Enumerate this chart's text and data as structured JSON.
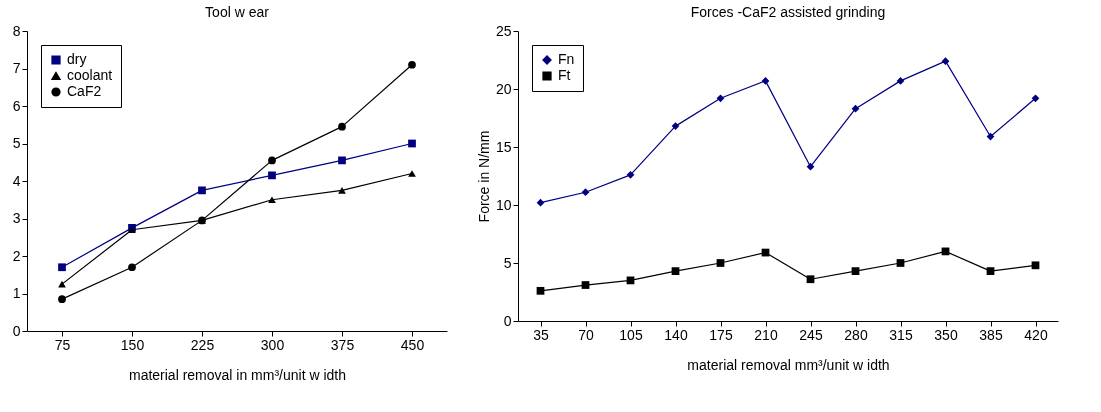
{
  "chart_data": [
    {
      "type": "line",
      "title": "Tool w ear",
      "xlabel": "material removal in mm³/unit w idth",
      "categories": [
        "75",
        "150",
        "225",
        "300",
        "375",
        "450"
      ],
      "ylim": [
        0,
        8
      ],
      "yticks": [
        0,
        1,
        2,
        3,
        4,
        5,
        6,
        7,
        8
      ],
      "grid": false,
      "legend": "top left",
      "series": [
        {
          "name": "dry",
          "color": "#000080",
          "marker": "square",
          "values": [
            1.7,
            2.75,
            3.75,
            4.15,
            4.55,
            5.0
          ]
        },
        {
          "name": "coolant",
          "color": "#000000",
          "marker": "triangle",
          "values": [
            1.25,
            2.7,
            2.95,
            3.5,
            3.75,
            4.2
          ]
        },
        {
          "name": "CaF2",
          "color": "#000000",
          "marker": "circle",
          "values": [
            0.85,
            1.7,
            2.95,
            4.55,
            5.45,
            7.1
          ]
        }
      ]
    },
    {
      "type": "line",
      "title": "Forces -CaF2 assisted grinding",
      "xlabel": "material removal mm³/unit w idth",
      "ylabel": "Force in N/mm",
      "categories": [
        "35",
        "70",
        "105",
        "140",
        "175",
        "210",
        "245",
        "280",
        "315",
        "350",
        "385",
        "420"
      ],
      "ylim": [
        0,
        25
      ],
      "yticks": [
        0,
        5,
        10,
        15,
        20,
        25
      ],
      "grid": false,
      "legend": "top left",
      "series": [
        {
          "name": "Fn",
          "color": "#000080",
          "marker": "diamond",
          "values": [
            10.2,
            11.1,
            12.6,
            16.8,
            19.2,
            20.7,
            13.3,
            18.3,
            20.7,
            22.4,
            15.9,
            19.2
          ]
        },
        {
          "name": "Ft",
          "color": "#000000",
          "marker": "square",
          "values": [
            2.6,
            3.1,
            3.5,
            4.3,
            5.0,
            5.9,
            3.6,
            4.3,
            5.0,
            6.0,
            4.3,
            4.8
          ]
        }
      ]
    }
  ]
}
